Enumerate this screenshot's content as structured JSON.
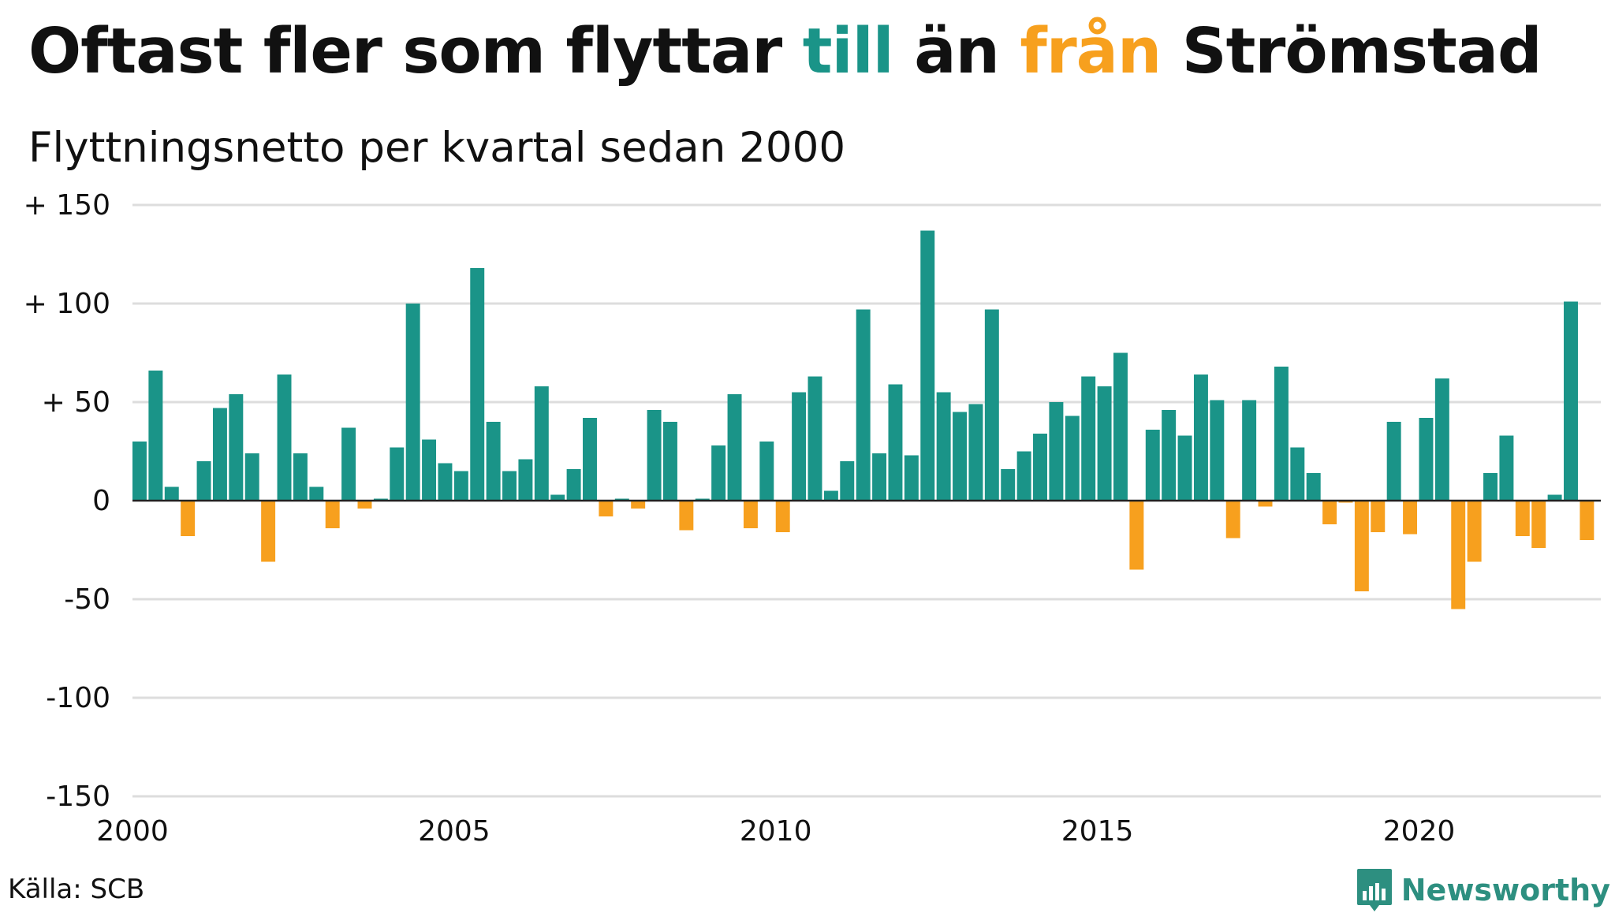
{
  "title": {
    "part1": "Oftast fler som flyttar ",
    "highlight1": "till",
    "part2": " än ",
    "highlight2": "från",
    "part3": " Strömstad"
  },
  "subtitle": "Flyttningsnetto per kvartal sedan 2000",
  "source": "Källa: SCB",
  "brand": {
    "name": "Newsworthy",
    "icon": "newsworthy-logo-icon"
  },
  "colors": {
    "positive": "#1a9488",
    "negative": "#f7a01e",
    "grid": "#dddddd",
    "axis": "#222222",
    "brand": "#2d8f80"
  },
  "chart_data": {
    "type": "bar",
    "title": "Oftast fler som flyttar till än från Strömstad",
    "subtitle": "Flyttningsnetto per kvartal sedan 2000",
    "xlabel": "",
    "ylabel": "",
    "ylim": [
      -150,
      150
    ],
    "yticks": [
      {
        "value": 150,
        "label": "+ 150"
      },
      {
        "value": 100,
        "label": "+ 100"
      },
      {
        "value": 50,
        "label": "+  50"
      },
      {
        "value": 0,
        "label": "0"
      },
      {
        "value": -50,
        "label": "-50"
      },
      {
        "value": -100,
        "label": "-100"
      },
      {
        "value": -150,
        "label": "-150"
      }
    ],
    "xticks": [
      {
        "year": 2000,
        "label": "2000"
      },
      {
        "year": 2005,
        "label": "2005"
      },
      {
        "year": 2010,
        "label": "2010"
      },
      {
        "year": 2015,
        "label": "2015"
      },
      {
        "year": 2020,
        "label": "2020"
      }
    ],
    "start": "2000-Q1",
    "grid": true,
    "values": [
      30,
      66,
      7,
      -18,
      20,
      47,
      54,
      24,
      -31,
      64,
      24,
      7,
      -14,
      37,
      -4,
      1,
      27,
      100,
      31,
      19,
      15,
      118,
      40,
      15,
      21,
      58,
      3,
      16,
      42,
      -8,
      1,
      -4,
      46,
      40,
      -15,
      1,
      28,
      54,
      -14,
      30,
      -16,
      55,
      63,
      5,
      20,
      97,
      24,
      59,
      23,
      137,
      55,
      45,
      49,
      97,
      16,
      25,
      34,
      50,
      43,
      63,
      58,
      75,
      -35,
      36,
      46,
      33,
      64,
      51,
      -19,
      51,
      -3,
      68,
      27,
      14,
      -12,
      -1,
      -46,
      -16,
      40,
      -17,
      42,
      62,
      -55,
      -31,
      14,
      33,
      -18,
      -24,
      3,
      101,
      -20
    ]
  }
}
